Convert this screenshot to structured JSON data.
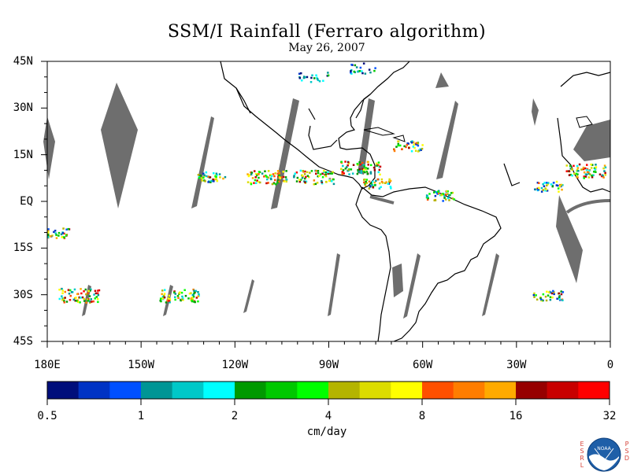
{
  "title": "SSM/I Rainfall (Ferraro algorithm)",
  "subtitle": "May 26, 2007",
  "map": {
    "lon_range": [
      -180,
      0
    ],
    "lat_range": [
      -45,
      45
    ],
    "lat_labels": [
      "45N",
      "30N",
      "15N",
      "EQ",
      "15S",
      "30S",
      "45S"
    ],
    "lat_values": [
      45,
      30,
      15,
      0,
      -15,
      -30,
      -45
    ],
    "lon_labels": [
      "180E",
      "150W",
      "120W",
      "90W",
      "60W",
      "30W",
      "0"
    ],
    "lon_values": [
      -180,
      -150,
      -120,
      -90,
      -60,
      -30,
      0
    ],
    "missing_swath_color": "#6e6e6e",
    "land_outline_color": "#000000",
    "rain_clusters": [
      {
        "lon": -128,
        "lat": 8,
        "intensity": "moderate"
      },
      {
        "lon": -110,
        "lat": 8,
        "intensity": "heavy"
      },
      {
        "lon": -95,
        "lat": 8,
        "intensity": "heavy"
      },
      {
        "lon": -80,
        "lat": 11,
        "intensity": "heavy"
      },
      {
        "lon": -75,
        "lat": 6,
        "intensity": "moderate"
      },
      {
        "lon": -65,
        "lat": 18,
        "intensity": "moderate"
      },
      {
        "lon": -55,
        "lat": 2,
        "intensity": "moderate"
      },
      {
        "lon": -20,
        "lat": 5,
        "intensity": "moderate"
      },
      {
        "lon": -8,
        "lat": 10,
        "intensity": "heavy"
      },
      {
        "lon": -178,
        "lat": -10,
        "intensity": "moderate"
      },
      {
        "lon": -170,
        "lat": -30,
        "intensity": "heavy"
      },
      {
        "lon": -138,
        "lat": -30,
        "intensity": "heavy"
      },
      {
        "lon": -20,
        "lat": -30,
        "intensity": "moderate"
      },
      {
        "lon": -95,
        "lat": 40,
        "intensity": "light"
      },
      {
        "lon": -80,
        "lat": 43,
        "intensity": "light"
      }
    ]
  },
  "colorbar": {
    "colors": [
      "#000e7b",
      "#0033c4",
      "#0050ff",
      "#009595",
      "#00c8c8",
      "#00ffff",
      "#009900",
      "#00c800",
      "#00ff00",
      "#b4b400",
      "#dcdc00",
      "#ffff00",
      "#ff5000",
      "#ff7d00",
      "#ffaa00",
      "#960000",
      "#c80000",
      "#ff0000"
    ],
    "tick_labels": [
      "0.5",
      "1",
      "2",
      "4",
      "8",
      "16",
      "32"
    ],
    "units": "cm/day"
  },
  "logo": {
    "left_text": [
      "E",
      "S",
      "R",
      "L"
    ],
    "right_text": [
      "P",
      "S",
      "D"
    ],
    "emblem_text": "NOAA"
  }
}
